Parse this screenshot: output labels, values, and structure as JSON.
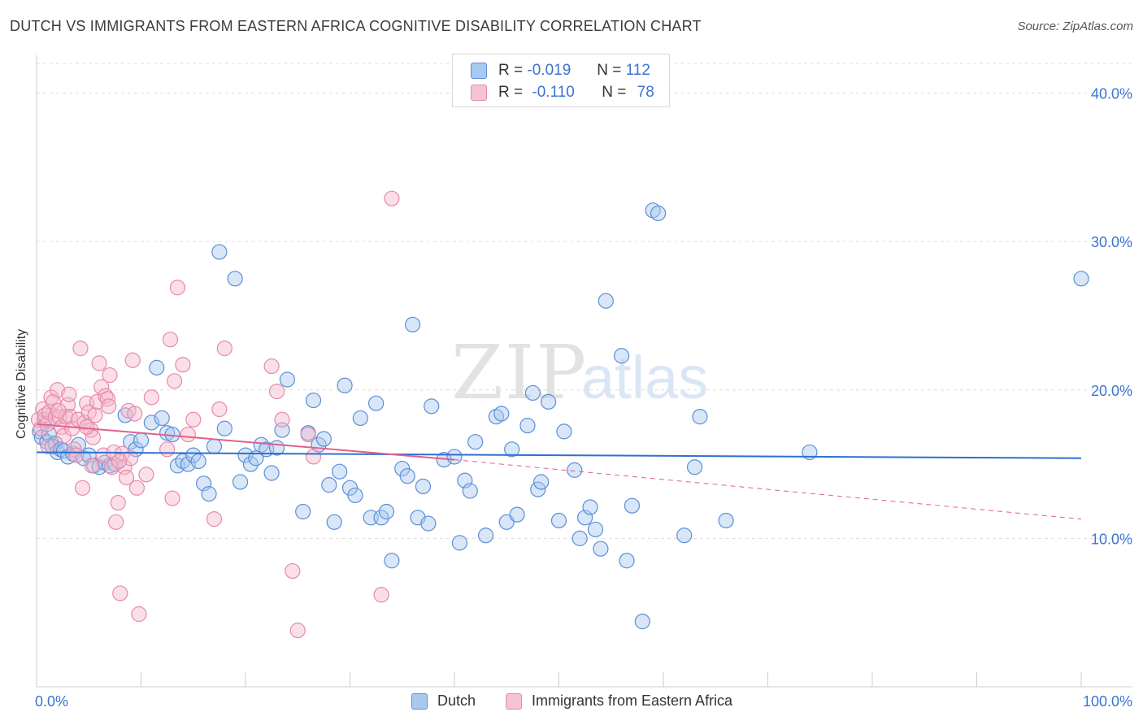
{
  "title": "DUTCH VS IMMIGRANTS FROM EASTERN AFRICA COGNITIVE DISABILITY CORRELATION CHART",
  "source": "Source: ZipAtlas.com",
  "watermark": {
    "zip": "ZIP",
    "atlas": "atlas"
  },
  "legend": {
    "dutch": {
      "r_label": "R =",
      "r_value": "-0.019",
      "n_label": "N =",
      "n_value": "112"
    },
    "eafrica": {
      "r_label": "R =",
      "r_value": "-0.110",
      "n_label": "N =",
      "n_value": "78"
    }
  },
  "colors": {
    "dutch_fill": "#a9c8f0",
    "dutch_stroke": "#5b8fd6",
    "dutch_line": "#2f6fd0",
    "eafrica_fill": "#f6b9cc",
    "eafrica_stroke": "#e58aa8",
    "eafrica_line": "#e0608c",
    "grid": "#dddddd",
    "tick_label": "#3b74d1"
  },
  "chart_data": {
    "type": "scatter",
    "title": "DUTCH VS IMMIGRANTS FROM EASTERN AFRICA COGNITIVE DISABILITY CORRELATION CHART",
    "xlabel": "",
    "ylabel": "Cognitive Disability",
    "xlim": [
      0,
      100
    ],
    "ylim": [
      0,
      42
    ],
    "x_tick_labels": [
      "0.0%",
      "100.0%"
    ],
    "y_ticks": [
      10,
      20,
      30,
      40
    ],
    "y_tick_labels": [
      "10.0%",
      "20.0%",
      "30.0%",
      "40.0%"
    ],
    "grid": true,
    "series": [
      {
        "name": "Dutch",
        "points": [
          [
            0.3,
            17.2
          ],
          [
            0.5,
            16.8
          ],
          [
            0.8,
            18.0
          ],
          [
            1.0,
            16.5
          ],
          [
            1.2,
            17.0
          ],
          [
            1.5,
            16.2
          ],
          [
            1.8,
            16.4
          ],
          [
            2.0,
            15.8
          ],
          [
            2.3,
            16.0
          ],
          [
            2.6,
            15.9
          ],
          [
            3.0,
            15.5
          ],
          [
            3.5,
            15.7
          ],
          [
            4.0,
            16.3
          ],
          [
            4.5,
            15.4
          ],
          [
            5.0,
            15.6
          ],
          [
            5.5,
            14.9
          ],
          [
            6.0,
            14.8
          ],
          [
            6.5,
            15.1
          ],
          [
            7.0,
            14.9
          ],
          [
            7.5,
            15.0
          ],
          [
            8.5,
            18.3
          ],
          [
            9.0,
            16.5
          ],
          [
            9.5,
            16.0
          ],
          [
            10.0,
            16.6
          ],
          [
            11.0,
            17.8
          ],
          [
            11.5,
            21.5
          ],
          [
            12.0,
            18.1
          ],
          [
            12.5,
            17.1
          ],
          [
            13.0,
            17.0
          ],
          [
            13.5,
            14.9
          ],
          [
            14.0,
            15.2
          ],
          [
            14.5,
            15.0
          ],
          [
            15.0,
            15.6
          ],
          [
            15.5,
            15.2
          ],
          [
            16.0,
            13.7
          ],
          [
            16.5,
            13.0
          ],
          [
            17.0,
            16.2
          ],
          [
            17.5,
            29.3
          ],
          [
            18.0,
            17.4
          ],
          [
            19.0,
            27.5
          ],
          [
            19.5,
            13.8
          ],
          [
            20.0,
            15.6
          ],
          [
            20.5,
            15.0
          ],
          [
            21.0,
            15.4
          ],
          [
            21.5,
            16.3
          ],
          [
            22.0,
            16.0
          ],
          [
            22.5,
            14.4
          ],
          [
            23.0,
            16.1
          ],
          [
            23.5,
            17.3
          ],
          [
            24.0,
            20.7
          ],
          [
            25.5,
            11.8
          ],
          [
            26.0,
            17.1
          ],
          [
            26.5,
            19.3
          ],
          [
            27.0,
            16.3
          ],
          [
            27.5,
            16.7
          ],
          [
            28.0,
            13.6
          ],
          [
            28.5,
            11.1
          ],
          [
            29.0,
            14.5
          ],
          [
            29.5,
            20.3
          ],
          [
            30.0,
            13.4
          ],
          [
            30.5,
            12.9
          ],
          [
            31.0,
            18.1
          ],
          [
            32.0,
            11.4
          ],
          [
            32.5,
            19.1
          ],
          [
            33.0,
            11.4
          ],
          [
            33.5,
            11.8
          ],
          [
            34.0,
            8.5
          ],
          [
            35.0,
            14.7
          ],
          [
            35.5,
            14.2
          ],
          [
            36.0,
            24.4
          ],
          [
            36.5,
            11.4
          ],
          [
            37.0,
            13.5
          ],
          [
            37.5,
            11.0
          ],
          [
            37.8,
            18.9
          ],
          [
            39.0,
            15.3
          ],
          [
            40.0,
            15.5
          ],
          [
            40.5,
            9.7
          ],
          [
            41.0,
            13.9
          ],
          [
            41.5,
            13.2
          ],
          [
            42.0,
            16.5
          ],
          [
            43.0,
            10.2
          ],
          [
            44.0,
            18.2
          ],
          [
            44.5,
            18.4
          ],
          [
            45.0,
            11.1
          ],
          [
            45.5,
            16.0
          ],
          [
            46.0,
            11.6
          ],
          [
            47.0,
            17.6
          ],
          [
            47.5,
            19.8
          ],
          [
            48.0,
            13.3
          ],
          [
            48.3,
            13.8
          ],
          [
            49.0,
            19.2
          ],
          [
            50.0,
            11.2
          ],
          [
            50.5,
            17.2
          ],
          [
            51.5,
            14.6
          ],
          [
            52.0,
            10.0
          ],
          [
            52.5,
            11.4
          ],
          [
            53.0,
            12.1
          ],
          [
            53.5,
            10.6
          ],
          [
            54.0,
            9.3
          ],
          [
            54.5,
            26.0
          ],
          [
            56.0,
            22.3
          ],
          [
            56.5,
            8.5
          ],
          [
            57.0,
            12.2
          ],
          [
            58.0,
            4.4
          ],
          [
            59.0,
            32.1
          ],
          [
            59.5,
            31.9
          ],
          [
            62.0,
            10.2
          ],
          [
            63.0,
            14.8
          ],
          [
            63.5,
            18.2
          ],
          [
            66.0,
            11.2
          ],
          [
            74.0,
            15.8
          ],
          [
            100.0,
            27.5
          ]
        ]
      },
      {
        "name": "Immigrants from Eastern Africa",
        "points": [
          [
            0.2,
            18.0
          ],
          [
            0.4,
            17.4
          ],
          [
            0.6,
            18.7
          ],
          [
            0.8,
            18.3
          ],
          [
            1.0,
            17.7
          ],
          [
            1.2,
            18.5
          ],
          [
            1.4,
            19.5
          ],
          [
            1.6,
            19.2
          ],
          [
            1.8,
            18.1
          ],
          [
            2.0,
            20.0
          ],
          [
            2.2,
            18.2
          ],
          [
            2.4,
            17.5
          ],
          [
            2.6,
            16.9
          ],
          [
            2.8,
            18.2
          ],
          [
            3.0,
            19.0
          ],
          [
            3.2,
            18.2
          ],
          [
            3.4,
            17.4
          ],
          [
            3.6,
            16.0
          ],
          [
            3.8,
            15.6
          ],
          [
            4.0,
            18.0
          ],
          [
            4.2,
            22.8
          ],
          [
            4.4,
            13.4
          ],
          [
            4.6,
            17.8
          ],
          [
            4.8,
            19.1
          ],
          [
            5.0,
            18.5
          ],
          [
            5.2,
            17.3
          ],
          [
            5.4,
            16.8
          ],
          [
            5.6,
            18.3
          ],
          [
            5.8,
            19.2
          ],
          [
            6.0,
            21.8
          ],
          [
            6.2,
            20.2
          ],
          [
            6.4,
            15.6
          ],
          [
            6.6,
            19.6
          ],
          [
            6.8,
            19.4
          ],
          [
            7.0,
            21.0
          ],
          [
            7.2,
            14.8
          ],
          [
            7.4,
            15.8
          ],
          [
            7.6,
            11.1
          ],
          [
            7.8,
            12.4
          ],
          [
            8.0,
            6.3
          ],
          [
            8.2,
            15.7
          ],
          [
            8.4,
            14.8
          ],
          [
            8.6,
            14.1
          ],
          [
            8.8,
            18.6
          ],
          [
            9.0,
            15.4
          ],
          [
            9.2,
            22.0
          ],
          [
            9.4,
            18.4
          ],
          [
            9.6,
            13.4
          ],
          [
            9.8,
            4.9
          ],
          [
            10.5,
            14.3
          ],
          [
            11.0,
            19.5
          ],
          [
            12.5,
            16.0
          ],
          [
            12.8,
            23.4
          ],
          [
            13.0,
            12.7
          ],
          [
            13.2,
            20.6
          ],
          [
            13.5,
            26.9
          ],
          [
            14.0,
            21.7
          ],
          [
            14.5,
            17.0
          ],
          [
            15.0,
            18.0
          ],
          [
            17.0,
            11.3
          ],
          [
            17.5,
            18.7
          ],
          [
            18.0,
            22.8
          ],
          [
            22.5,
            21.6
          ],
          [
            23.0,
            19.9
          ],
          [
            23.5,
            18.0
          ],
          [
            24.5,
            7.8
          ],
          [
            25.0,
            3.8
          ],
          [
            26.0,
            17.0
          ],
          [
            26.5,
            15.5
          ],
          [
            33.0,
            6.2
          ],
          [
            34.0,
            32.9
          ],
          [
            4.8,
            17.5
          ],
          [
            6.9,
            18.9
          ],
          [
            3.1,
            19.7
          ],
          [
            2.1,
            18.6
          ],
          [
            1.1,
            16.2
          ],
          [
            5.3,
            14.9
          ],
          [
            7.9,
            15.2
          ]
        ]
      }
    ],
    "trendlines": [
      {
        "series": "Dutch",
        "x": [
          0,
          100
        ],
        "y": [
          15.8,
          15.4
        ],
        "style": "solid"
      },
      {
        "series": "Immigrants from Eastern Africa",
        "x": [
          0,
          40
        ],
        "y": [
          17.7,
          15.3
        ],
        "style": "solid"
      },
      {
        "series": "Immigrants from Eastern Africa",
        "x": [
          40,
          100
        ],
        "y": [
          15.3,
          11.3
        ],
        "style": "dashed"
      }
    ]
  },
  "bottom_legend": [
    "Dutch",
    "Immigrants from Eastern Africa"
  ]
}
